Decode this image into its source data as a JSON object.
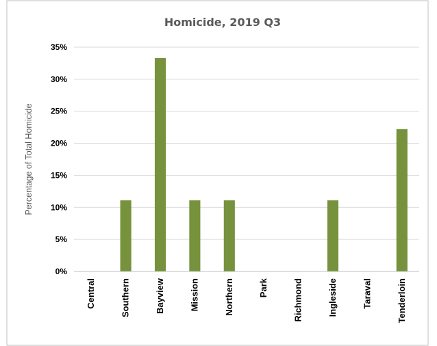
{
  "chart_data": {
    "type": "bar",
    "title": "Homicide, 2019 Q3",
    "xlabel": "",
    "ylabel": "Percentage of Total Homicide",
    "categories": [
      "Central",
      "Southern",
      "Bayview",
      "Mission",
      "Northern",
      "Park",
      "Richmond",
      "Ingleside",
      "Taraval",
      "Tenderloin"
    ],
    "values": [
      0,
      11.1,
      33.3,
      11.1,
      11.1,
      0,
      0,
      11.1,
      0,
      22.2
    ],
    "ylim": [
      0,
      35
    ],
    "yticks": [
      0,
      5,
      10,
      15,
      20,
      25,
      30,
      35
    ],
    "ytick_labels": [
      "0%",
      "5%",
      "10%",
      "15%",
      "20%",
      "25%",
      "30%",
      "35%"
    ],
    "grid": true,
    "legend": "none",
    "bar_color": "#76923c",
    "grid_color": "#d9d9d9",
    "axis_color": "#bfbfbf"
  }
}
